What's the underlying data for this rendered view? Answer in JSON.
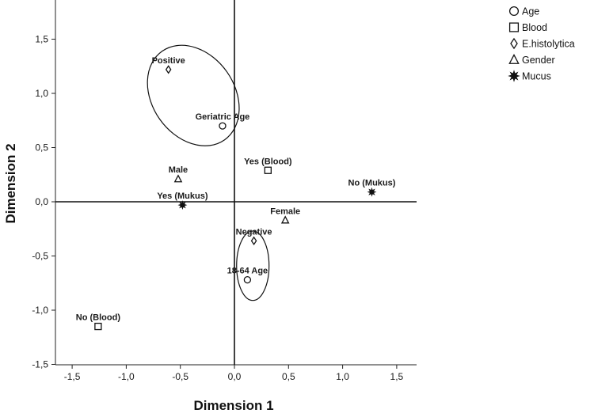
{
  "chart_data": {
    "type": "scatter",
    "xlabel": "Dimension 1",
    "ylabel": "Dimension 2",
    "xlim": [
      -1.7,
      1.7
    ],
    "ylim": [
      -1.5,
      1.8
    ],
    "x_ticks": [
      -1.5,
      -1.0,
      -0.5,
      0.0,
      0.5,
      1.0,
      1.5
    ],
    "x_tick_labels": [
      "-1,5",
      "-1,0",
      "-0,5",
      "0,0",
      "0,5",
      "1,0",
      "1,5"
    ],
    "y_ticks": [
      -1.5,
      -1.0,
      -0.5,
      0.0,
      0.5,
      1.0,
      1.5
    ],
    "y_tick_labels": [
      "-1,5",
      "-1,0",
      "-0,5",
      "0,0",
      "0,5",
      "1,0",
      "1,5"
    ],
    "reference_lines": {
      "x": 0,
      "y": 0
    },
    "legend_position": "top-right",
    "series": [
      {
        "name": "Age",
        "marker": "circle",
        "points": [
          {
            "label": "Geriatric Age",
            "x": -0.11,
            "y": 0.7
          },
          {
            "label": "18-64 Age",
            "x": 0.12,
            "y": -0.72
          }
        ]
      },
      {
        "name": "Blood",
        "marker": "square",
        "points": [
          {
            "label": "Yes (Blood)",
            "x": 0.31,
            "y": 0.29
          },
          {
            "label": "No (Blood)",
            "x": -1.26,
            "y": -1.15
          }
        ]
      },
      {
        "name": "E.histolytica",
        "marker": "diamond",
        "points": [
          {
            "label": "Positive",
            "x": -0.61,
            "y": 1.22
          },
          {
            "label": "Negative",
            "x": 0.18,
            "y": -0.36
          }
        ]
      },
      {
        "name": "Gender",
        "marker": "triangle",
        "points": [
          {
            "label": "Male",
            "x": -0.52,
            "y": 0.21
          },
          {
            "label": "Female",
            "x": 0.47,
            "y": -0.17
          }
        ]
      },
      {
        "name": "Mucus",
        "marker": "star",
        "points": [
          {
            "label": "Yes (Mukus)",
            "x": -0.48,
            "y": -0.03
          },
          {
            "label": "No (Mukus)",
            "x": 1.27,
            "y": 0.09
          }
        ]
      }
    ],
    "ellipses": [
      {
        "cx": -0.38,
        "cy": 0.98,
        "rx": 0.38,
        "ry": 0.5,
        "rotate_deg": -35
      },
      {
        "cx": 0.17,
        "cy": -0.59,
        "rx": 0.15,
        "ry": 0.32,
        "rotate_deg": 0
      }
    ]
  }
}
